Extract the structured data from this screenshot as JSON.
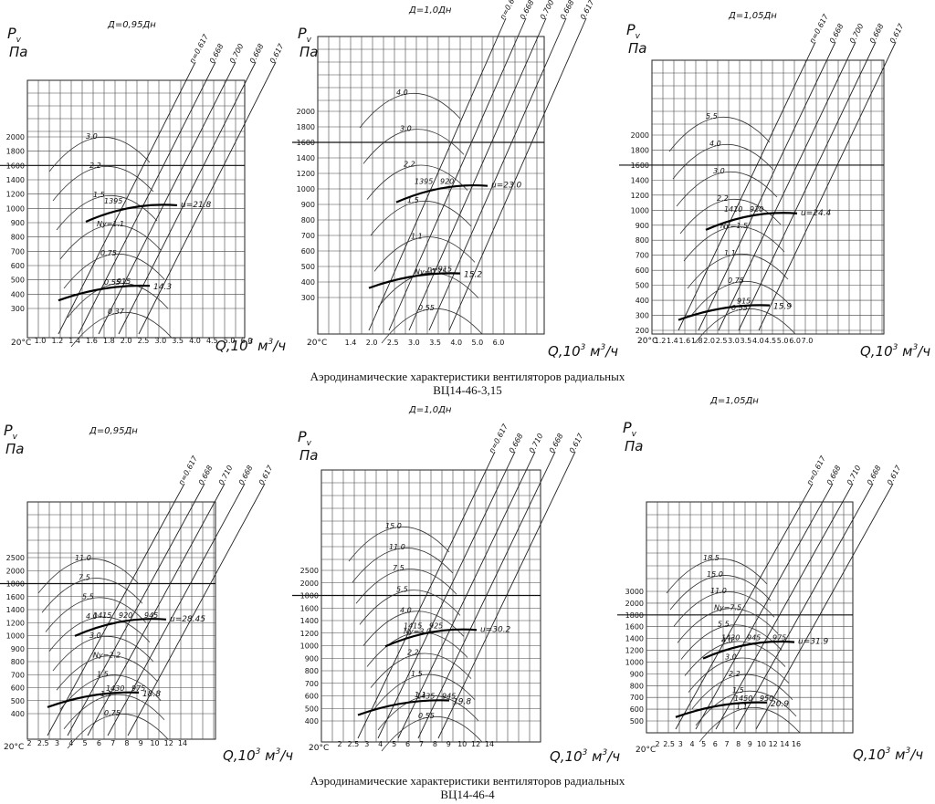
{
  "captions": [
    {
      "line1": "Аэродинамические характеристики вентиляторов радиальных",
      "line2": "ВЦ14-46-3,15"
    },
    {
      "line1": "Аэродинамические характеристики вентиляторов радиальных",
      "line2": "ВЦ14-46-4"
    }
  ],
  "chart_data": [
    {
      "type": "line",
      "panel": "top-left",
      "title": "Д=0,95Дн",
      "ylabel_p": "P",
      "ylabel_sub": "v",
      "ylabel_unit": "Па",
      "xlabel": "Q,10",
      "xlabel_exp": "3",
      "xlabel_unit": "м",
      "xlabel_unit_exp": "3",
      "xlabel_tail": "/ч",
      "temp_label": "20°С",
      "y_ticks": [
        "2000",
        "1800",
        "1600",
        "1400",
        "1200",
        "1000",
        "900",
        "800",
        "700",
        "600",
        "500",
        "400",
        "300"
      ],
      "x_ticks": [
        "1.0",
        "1.2",
        "1.4",
        "1.6",
        "1.8",
        "2.0",
        "2.5",
        "3.0",
        "3.5",
        "4.0",
        "4.5",
        "5.0",
        "6.0"
      ],
      "efficiency_labels": [
        "n=0.617",
        "0.668",
        "0.700",
        "0.668",
        "0.617"
      ],
      "power_labels": [
        "3.0",
        "2.2",
        "1.5",
        "Ny=1.1",
        "0.75",
        "0.55",
        "0.37"
      ],
      "speed_labels": [
        "1395",
        "915"
      ],
      "tip_speed_labels": [
        "u=21.8",
        "14.3"
      ]
    },
    {
      "type": "line",
      "panel": "top-middle",
      "title": "Д=1,0Дн",
      "ylabel_p": "P",
      "ylabel_sub": "v",
      "ylabel_unit": "Па",
      "xlabel": "Q,10",
      "xlabel_exp": "3",
      "xlabel_unit": "м",
      "xlabel_unit_exp": "3",
      "xlabel_tail": "/ч",
      "temp_label": "20°С",
      "y_ticks": [
        "2000",
        "1800",
        "1600",
        "1400",
        "1200",
        "1000",
        "900",
        "800",
        "700",
        "600",
        "500",
        "400",
        "300"
      ],
      "x_ticks": [
        "1.4",
        "2.0",
        "2.5",
        "3.0",
        "3.5",
        "4.0",
        "5.0",
        "6.0"
      ],
      "efficiency_labels": [
        "n=0.617",
        "0.668",
        "0.700",
        "0.668",
        "0.617"
      ],
      "power_labels": [
        "4.0",
        "3.0",
        "2.2",
        "1.5",
        "1.1",
        "Ny=0.75",
        "0.55"
      ],
      "speed_labels": [
        "1395",
        "n=915",
        "920"
      ],
      "tip_speed_labels": [
        "u=23.0",
        "15.2"
      ]
    },
    {
      "type": "line",
      "panel": "top-right",
      "title": "Д=1,05Дн",
      "ylabel_p": "P",
      "ylabel_sub": "v",
      "ylabel_unit": "Па",
      "xlabel": "Q,10",
      "xlabel_exp": "3",
      "xlabel_unit": "м",
      "xlabel_unit_exp": "3",
      "xlabel_tail": "/ч",
      "temp_label": "20°С",
      "y_ticks": [
        "2000",
        "1800",
        "1600",
        "1400",
        "1200",
        "1000",
        "900",
        "800",
        "700",
        "600",
        "500",
        "400",
        "300",
        "200"
      ],
      "x_ticks": [
        "1.2",
        "1.4",
        "1.6",
        "1.8",
        "2.0",
        "2.5",
        "3.0",
        "3.5",
        "4.0",
        "4.5",
        "5.0",
        "6.0",
        "7.0"
      ],
      "efficiency_labels": [
        "n=0.617",
        "0.668",
        "0.700",
        "0.668",
        "0.617"
      ],
      "power_labels": [
        "5.5",
        "4.0",
        "3.0",
        "2.2",
        "Ny=1.5",
        "1.1",
        "0.75",
        "0.55"
      ],
      "speed_labels": [
        "1410",
        "915",
        "920"
      ],
      "tip_speed_labels": [
        "u=24.4",
        "15.9"
      ]
    },
    {
      "type": "line",
      "panel": "bottom-left",
      "title": "Д=0,95Дн",
      "ylabel_p": "P",
      "ylabel_sub": "v",
      "ylabel_unit": "Па",
      "xlabel": "Q,10",
      "xlabel_exp": "3",
      "xlabel_unit": "м",
      "xlabel_unit_exp": "3",
      "xlabel_tail": "/ч",
      "temp_label": "20°С",
      "y_ticks": [
        "2500",
        "2000",
        "1800",
        "1600",
        "1400",
        "1200",
        "1000",
        "900",
        "800",
        "700",
        "600",
        "500",
        "400"
      ],
      "x_ticks": [
        "2",
        "2.5",
        "3",
        "4",
        "5",
        "6",
        "7",
        "8",
        "9",
        "10",
        "12",
        "14"
      ],
      "efficiency_labels": [
        "n=0.617",
        "0.668",
        "0.710",
        "0.668",
        "0.617"
      ],
      "power_labels": [
        "11.0",
        "7.5",
        "5.5",
        "4.0",
        "3.0",
        "Ny=2.2",
        "1.5",
        "1.1",
        "0.75"
      ],
      "speed_labels": [
        "1415",
        "1430",
        "920",
        "975",
        "945"
      ],
      "tip_speed_labels": [
        "u=28.45",
        "18.8"
      ]
    },
    {
      "type": "line",
      "panel": "bottom-middle",
      "title": "Д=1,0Дн",
      "ylabel_p": "P",
      "ylabel_sub": "v",
      "ylabel_unit": "Па",
      "xlabel": "Q,10",
      "xlabel_exp": "3",
      "xlabel_unit": "м",
      "xlabel_unit_exp": "3",
      "xlabel_tail": "/ч",
      "temp_label": "20°С",
      "y_ticks": [
        "2500",
        "2000",
        "1800",
        "1600",
        "1400",
        "1200",
        "1000",
        "900",
        "800",
        "700",
        "600",
        "500",
        "400"
      ],
      "x_ticks": [
        "2",
        "2.5",
        "3",
        "4",
        "5",
        "6",
        "7",
        "8",
        "9",
        "10",
        "12",
        "14"
      ],
      "efficiency_labels": [
        "n=0.617",
        "0.668",
        "0.710",
        "0.668",
        "0.617"
      ],
      "power_labels": [
        "15.0",
        "11.0",
        "7.5",
        "5.5",
        "4.0",
        "Ny=3.0",
        "2.2",
        "1.5",
        "1.1",
        "0.55"
      ],
      "speed_labels": [
        "1415",
        "1435",
        "925",
        "945"
      ],
      "tip_speed_labels": [
        "u=30.2",
        "19.8"
      ]
    },
    {
      "type": "line",
      "panel": "bottom-right",
      "title": "Д=1,05Дн",
      "ylabel_p": "P",
      "ylabel_sub": "v",
      "ylabel_unit": "Па",
      "xlabel": "Q,10",
      "xlabel_exp": "3",
      "xlabel_unit": "м",
      "xlabel_unit_exp": "3",
      "xlabel_tail": "/ч",
      "temp_label": "20°С",
      "y_ticks": [
        "3000",
        "2000",
        "1800",
        "1600",
        "1400",
        "1200",
        "1000",
        "900",
        "800",
        "700",
        "600",
        "500"
      ],
      "x_ticks": [
        "2",
        "2.5",
        "3",
        "4",
        "5",
        "6",
        "7",
        "8",
        "9",
        "10",
        "12",
        "14",
        "16"
      ],
      "efficiency_labels": [
        "n=0.617",
        "0.668",
        "0.710",
        "0.668",
        "0.617"
      ],
      "power_labels": [
        "18.5",
        "15.0",
        "11.0",
        "Ny=7.5",
        "5.5",
        "4.0",
        "3.0",
        "2.2",
        "1.5",
        "1.1"
      ],
      "speed_labels": [
        "1430",
        "1450",
        "945",
        "950",
        "975"
      ],
      "tip_speed_labels": [
        "u=31.9",
        "20.9"
      ]
    }
  ]
}
